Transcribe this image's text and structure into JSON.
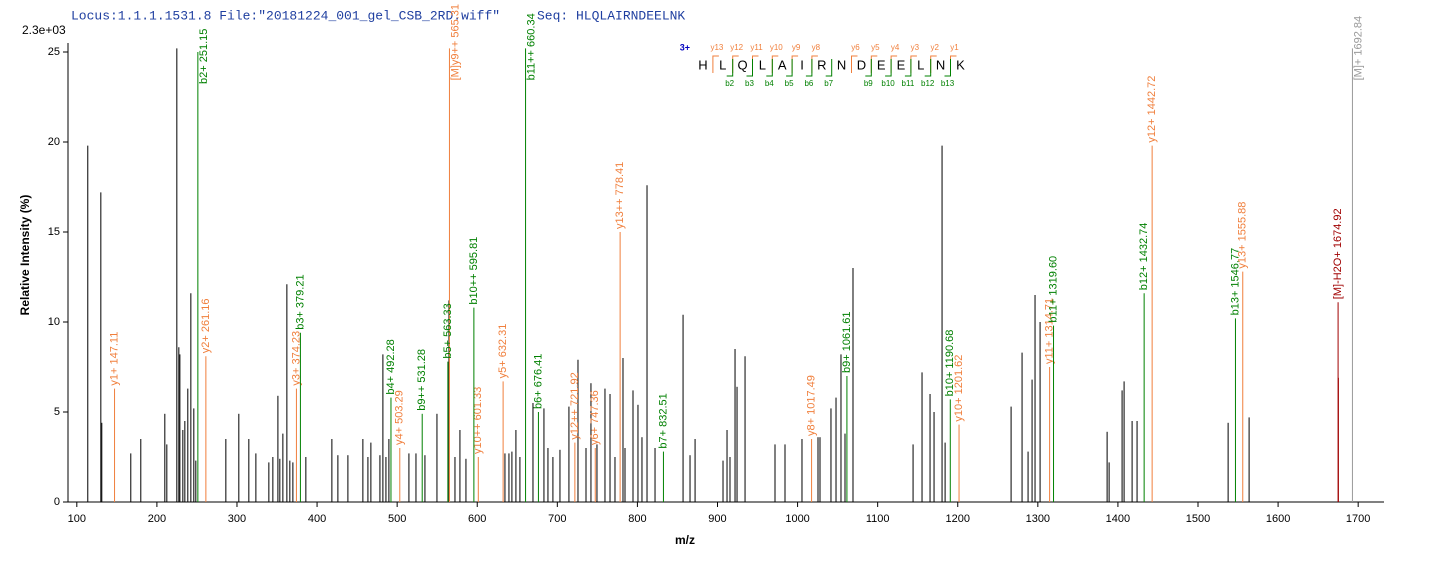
{
  "chart_data": {
    "type": "spectrum",
    "title": "Locus:1.1.1.1531.8 File:\"20181224_001_gel_CSB_2RD.wiff\"",
    "subtitle": "Seq: HLQLAIRNDEELNK",
    "scale_label": "2.3e+03",
    "ylabel": "Relative  Intensity (%)",
    "xlabel": "m/z",
    "xlim": [
      89,
      1731
    ],
    "ylim": [
      0,
      25.5
    ],
    "xticks": [
      100,
      200,
      300,
      400,
      500,
      600,
      700,
      800,
      900,
      1000,
      1100,
      1200,
      1300,
      1400,
      1500,
      1600,
      1700
    ],
    "yticks": [
      0,
      5,
      10,
      15,
      20,
      25
    ],
    "sequence": {
      "charge": "3+",
      "residues": [
        "H",
        "L",
        "Q",
        "L",
        "A",
        "I",
        "R",
        "N",
        "D",
        "E",
        "E",
        "L",
        "N",
        "K"
      ],
      "y_ions": [
        "y13",
        "y12",
        "y11",
        "y10",
        "y9",
        "y8",
        null,
        "y6",
        "y5",
        "y4",
        "y3",
        "y2",
        "y1"
      ],
      "b_ions": [
        null,
        "b2",
        "b3",
        "b4",
        "b5",
        "b6",
        "b7",
        null,
        "b9",
        "b10",
        "b11",
        "b12",
        "b13"
      ],
      "y_color": "#f07f3c",
      "b_color": "#008000"
    },
    "series": [
      {
        "color": "#000000",
        "x": [
          113.7,
          130.0,
          131.2,
          167.4,
          179.9,
          209.9,
          212.4,
          224.9,
          227.4,
          228.7,
          232.4,
          234.9,
          238.6,
          242.4,
          246.1,
          248.6,
          286.1,
          302.3,
          314.8,
          323.6,
          339.8,
          344.8,
          351.1,
          353.5,
          357.3,
          362.3,
          366.0,
          369.8,
          386.0,
          418.5,
          426.0,
          438.5,
          457.2,
          463.5,
          467.2,
          478.5,
          482.2,
          486.0,
          489.7,
          514.7,
          523.5,
          534.7,
          549.7,
          564.7,
          572.2,
          578.4,
          585.9,
          634.6,
          639.6,
          643.3,
          648.3,
          653.3,
          669.6,
          683.3,
          688.3,
          694.5,
          703.3,
          714.5,
          725.8,
          735.8,
          742.0,
          749.5,
          759.5,
          765.8,
          772.0,
          782.0,
          784.5,
          794.5,
          800.7,
          805.7,
          812.0,
          822.0,
          857.0,
          865.7,
          872.0,
          906.9,
          911.9,
          915.6,
          921.9,
          924.4,
          934.4,
          971.8,
          984.3,
          1005.5,
          1025.5,
          1028.0,
          1041.7,
          1048.0,
          1054.2,
          1059.2,
          1069.2,
          1144.2,
          1155.4,
          1165.4,
          1170.4,
          1180.4,
          1184.2,
          1266.6,
          1280.3,
          1287.8,
          1292.8,
          1296.5,
          1302.8,
          1386.5,
          1389.0,
          1405.2,
          1407.7,
          1417.7,
          1423.9,
          1537.6,
          1563.8
        ],
        "values": [
          19.8,
          17.2,
          4.4,
          2.7,
          3.5,
          4.9,
          3.2,
          25.2,
          8.6,
          8.2,
          4.0,
          4.5,
          6.3,
          11.6,
          5.2,
          2.3,
          3.5,
          4.9,
          3.5,
          2.7,
          2.2,
          2.5,
          5.9,
          2.4,
          3.8,
          12.1,
          2.3,
          2.2,
          2.5,
          3.5,
          2.6,
          2.6,
          3.5,
          2.5,
          3.3,
          2.6,
          8.2,
          2.5,
          3.5,
          2.7,
          2.7,
          2.6,
          4.9,
          11.2,
          2.5,
          4.0,
          2.4,
          2.7,
          2.7,
          2.8,
          4.0,
          2.5,
          5.5,
          5.2,
          3.0,
          2.5,
          2.9,
          5.3,
          7.9,
          3.0,
          6.6,
          3.2,
          6.3,
          6.0,
          2.5,
          8.0,
          3.0,
          6.2,
          5.4,
          3.6,
          17.6,
          3.0,
          10.4,
          2.6,
          3.5,
          2.3,
          4.0,
          2.5,
          8.5,
          6.4,
          8.1,
          3.2,
          3.2,
          3.5,
          3.6,
          3.6,
          5.2,
          5.8,
          8.2,
          3.8,
          13.0,
          3.2,
          7.2,
          6.0,
          5.0,
          19.8,
          3.3,
          5.3,
          8.3,
          2.8,
          6.8,
          11.5,
          10.0,
          3.9,
          2.2,
          6.2,
          6.7,
          4.5,
          4.5,
          4.4,
          4.7
        ]
      },
      {
        "color": "#f07f3c",
        "x": [
          147.11,
          261.16,
          374.23,
          503.29,
          565.31,
          601.33,
          632.31,
          721.92,
          747.36,
          778.41,
          1017.49,
          1201.62,
          1314.71,
          1442.72,
          1555.88
        ],
        "values": [
          6.3,
          8.1,
          6.3,
          3.0,
          25.2,
          2.5,
          6.7,
          3.3,
          3.0,
          15.0,
          3.5,
          4.3,
          7.5,
          19.8,
          12.8
        ],
        "labels": [
          "y1+ 147.11",
          "y2+ 261.16",
          "y3+ 374.23",
          "y4+ 503.29",
          "[M]y9++ 565.31",
          "y10++ 601.33",
          "y5+ 632.31",
          "y12++ 721.92",
          "y6+ 747.36",
          "y13++ 778.41",
          "y8+ 1017.49",
          "y10+ 1201.62",
          "y11+ 1314.71",
          "y12+ 1442.72",
          "y13+ 1555.88"
        ]
      },
      {
        "color": "#008000",
        "x": [
          251.15,
          379.21,
          492.28,
          531.28,
          563.33,
          595.81,
          660.34,
          676.41,
          832.51,
          1061.61,
          1190.68,
          1319.6,
          1432.74,
          1546.77
        ],
        "values": [
          25.0,
          9.4,
          5.8,
          4.9,
          7.8,
          10.8,
          25.2,
          5.0,
          2.8,
          7.0,
          5.7,
          9.8,
          11.6,
          10.2
        ],
        "labels": [
          "b2+ 251.15",
          "b3+ 379.21",
          "b4+ 492.28",
          "b9++ 531.28",
          "b5+ 563.33",
          "b10++ 595.81",
          "b11++ 660.34",
          "b6+ 676.41",
          "b7+ 832.51",
          "b9+ 1061.61",
          "b10+ 1190.68",
          "b11+ 1319.60",
          "b12+ 1432.74",
          "b13+ 1546.77"
        ]
      },
      {
        "color": "#999999",
        "x": [
          1692.84
        ],
        "values": [
          25.2
        ],
        "labels": [
          "[M]+ 1692.84"
        ]
      },
      {
        "color": "#a00000",
        "x": [
          1674.92,
          1675.3
        ],
        "values": [
          11.1,
          6.9
        ],
        "labels": [
          "[M]-H2O+ 1674.92",
          null
        ]
      }
    ]
  }
}
